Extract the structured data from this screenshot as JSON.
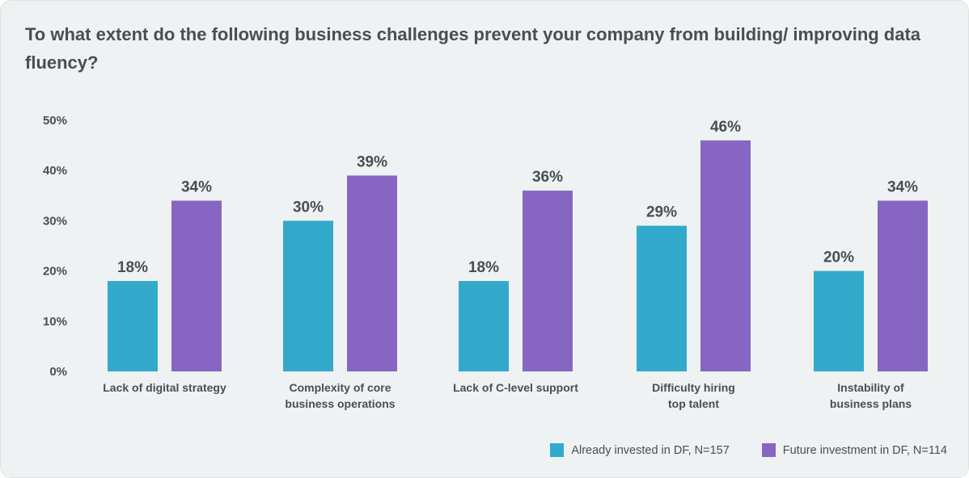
{
  "colors": {
    "series_1": "#33a9cb",
    "series_2": "#8766c3",
    "text": "#4a4e52"
  },
  "chart_data": {
    "type": "bar",
    "title": "To what extent do the following business challenges prevent your company from building/ improving data fluency?",
    "categories": [
      [
        "Lack of digital strategy"
      ],
      [
        "Complexity of core",
        "business operations"
      ],
      [
        "Lack of C-level support"
      ],
      [
        "Difficulty hiring",
        "top talent"
      ],
      [
        "Instability of",
        "business plans"
      ]
    ],
    "series": [
      {
        "name": "Already invested in DF, N=157",
        "values": [
          18,
          30,
          18,
          29,
          20
        ],
        "labels": [
          "18%",
          "30%",
          "18%",
          "29%",
          "20%"
        ]
      },
      {
        "name": "Future investment in DF, N=114",
        "values": [
          34,
          39,
          36,
          46,
          34
        ],
        "labels": [
          "34%",
          "39%",
          "36%",
          "46%",
          "34%"
        ]
      }
    ],
    "ylim": [
      0,
      50
    ],
    "yticks": [
      "0%",
      "10%",
      "20%",
      "30%",
      "40%",
      "50%"
    ],
    "grid": false,
    "legend": "bottom-right"
  }
}
